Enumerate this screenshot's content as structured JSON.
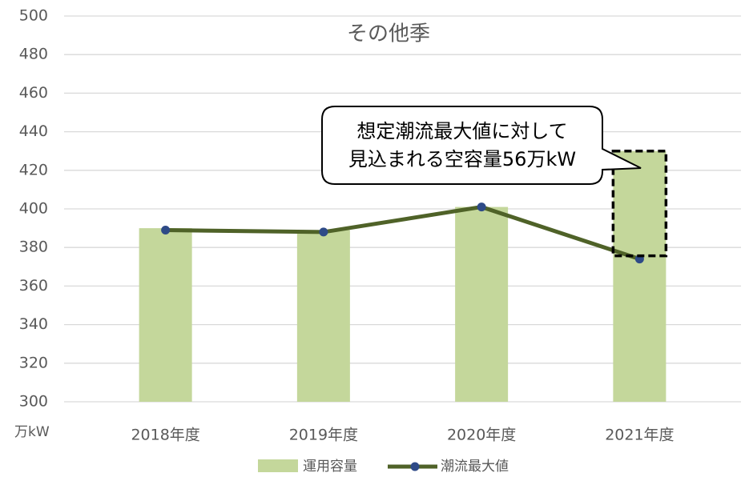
{
  "chart_data": {
    "type": "bar",
    "title": "その他季",
    "y_unit_label": "万kW",
    "categories": [
      "2018年度",
      "2019年度",
      "2020年度",
      "2021年度"
    ],
    "series": [
      {
        "name": "運用容量",
        "type": "bar",
        "color": "#c4d79b",
        "values": [
          390,
          389,
          401,
          430
        ]
      },
      {
        "name": "潮流最大値",
        "type": "line",
        "color": "#4f6228",
        "marker_color": "#2e4a87",
        "values": [
          389,
          388,
          401,
          374
        ]
      }
    ],
    "annotation": [
      "想定潮流最大値に対して",
      "見込まれる空容量56万kW"
    ],
    "ylim": [
      300,
      500
    ],
    "yticks": [
      300,
      320,
      340,
      360,
      380,
      400,
      420,
      440,
      460,
      480,
      500
    ],
    "grid": true,
    "legend": "bottom"
  }
}
